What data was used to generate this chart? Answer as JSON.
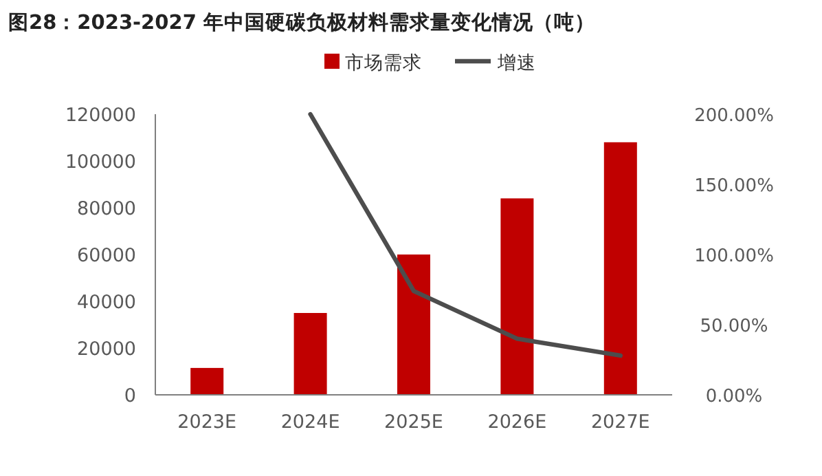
{
  "chart_data": {
    "type": "bar",
    "title": "图28：2023-2027 年中国硬碳负极材料需求量变化情况（吨）",
    "categories": [
      "2023E",
      "2024E",
      "2025E",
      "2026E",
      "2027E"
    ],
    "series": [
      {
        "name": "市场需求",
        "color": "#c00000",
        "values": [
          11500,
          35000,
          60000,
          84000,
          108000
        ]
      },
      {
        "name": "增速",
        "type": "line",
        "axis": "y2",
        "color": "#4d4d4d",
        "values": [
          null,
          200,
          74,
          40,
          28
        ]
      }
    ],
    "ylim": [
      0,
      120000
    ],
    "yticks": [
      0,
      20000,
      40000,
      60000,
      80000,
      100000,
      120000
    ],
    "y2lim": [
      0,
      200
    ],
    "y2ticks": [
      {
        "value": 0,
        "label": "0.00%"
      },
      {
        "value": 50,
        "label": "50.00%"
      },
      {
        "value": 100,
        "label": "100.00%"
      },
      {
        "value": 150,
        "label": "150.00%"
      },
      {
        "value": 200,
        "label": "200.00%"
      }
    ],
    "legend": "top",
    "grid": false
  }
}
